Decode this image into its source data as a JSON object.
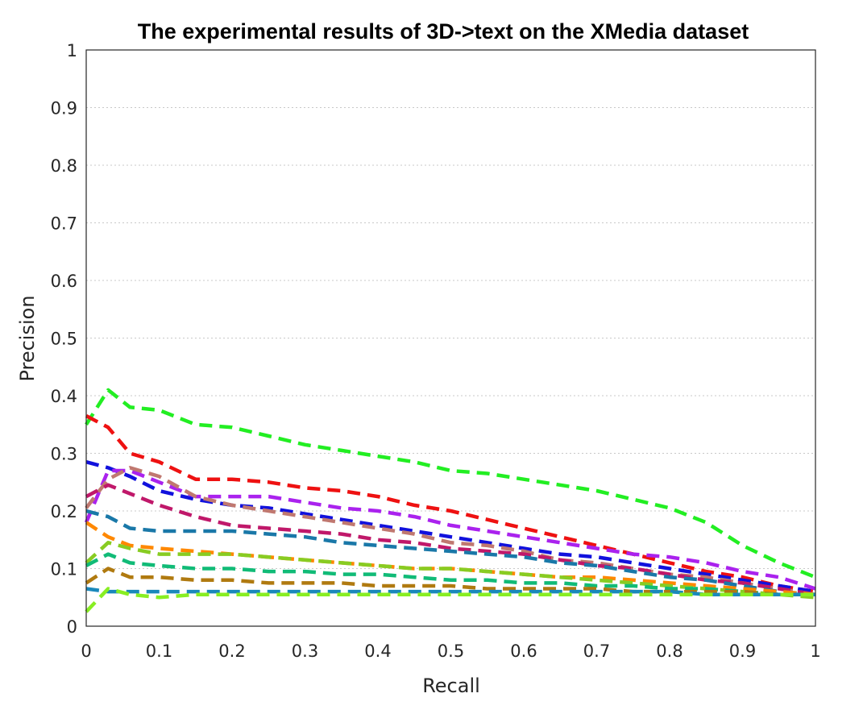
{
  "chart_data": {
    "type": "line",
    "title": "The experimental results of 3D->text on the XMedia dataset",
    "xlabel": "Recall",
    "ylabel": "Precision",
    "xlim": [
      0,
      1
    ],
    "ylim": [
      0,
      1
    ],
    "xticks": [
      "0",
      "0.1",
      "0.2",
      "0.3",
      "0.4",
      "0.5",
      "0.6",
      "0.7",
      "0.8",
      "0.9",
      "1"
    ],
    "yticks": [
      "0",
      "0.1",
      "0.2",
      "0.3",
      "0.4",
      "0.5",
      "0.6",
      "0.7",
      "0.8",
      "0.9",
      "1"
    ],
    "grid": "horizontal-dotted",
    "legend": "none",
    "x": [
      0,
      0.03,
      0.06,
      0.1,
      0.15,
      0.2,
      0.25,
      0.3,
      0.35,
      0.4,
      0.45,
      0.5,
      0.55,
      0.6,
      0.65,
      0.7,
      0.75,
      0.8,
      0.85,
      0.9,
      0.95,
      1.0
    ],
    "series": [
      {
        "color": "#22ee22",
        "values": [
          0.35,
          0.41,
          0.38,
          0.375,
          0.35,
          0.345,
          0.33,
          0.315,
          0.305,
          0.295,
          0.285,
          0.27,
          0.265,
          0.255,
          0.245,
          0.235,
          0.22,
          0.205,
          0.18,
          0.14,
          0.11,
          0.085
        ]
      },
      {
        "color": "#ee1111",
        "values": [
          0.365,
          0.345,
          0.3,
          0.285,
          0.255,
          0.255,
          0.25,
          0.24,
          0.235,
          0.225,
          0.21,
          0.2,
          0.185,
          0.17,
          0.155,
          0.14,
          0.125,
          0.11,
          0.095,
          0.085,
          0.07,
          0.06
        ]
      },
      {
        "color": "#1111dd",
        "values": [
          0.285,
          0.275,
          0.26,
          0.235,
          0.22,
          0.21,
          0.205,
          0.195,
          0.185,
          0.175,
          0.165,
          0.155,
          0.145,
          0.135,
          0.125,
          0.12,
          0.11,
          0.1,
          0.09,
          0.08,
          0.07,
          0.06
        ]
      },
      {
        "color": "#aa22ee",
        "values": [
          0.18,
          0.27,
          0.27,
          0.25,
          0.225,
          0.225,
          0.225,
          0.215,
          0.205,
          0.2,
          0.19,
          0.175,
          0.165,
          0.155,
          0.145,
          0.135,
          0.125,
          0.12,
          0.11,
          0.095,
          0.085,
          0.065
        ]
      },
      {
        "color": "#c07870",
        "values": [
          0.205,
          0.255,
          0.275,
          0.26,
          0.225,
          0.21,
          0.2,
          0.19,
          0.18,
          0.17,
          0.16,
          0.145,
          0.14,
          0.13,
          0.115,
          0.11,
          0.1,
          0.09,
          0.085,
          0.075,
          0.065,
          0.055
        ]
      },
      {
        "color": "#c0186a",
        "values": [
          0.225,
          0.245,
          0.23,
          0.21,
          0.19,
          0.175,
          0.17,
          0.165,
          0.16,
          0.15,
          0.145,
          0.135,
          0.13,
          0.125,
          0.115,
          0.105,
          0.1,
          0.09,
          0.08,
          0.075,
          0.065,
          0.055
        ]
      },
      {
        "color": "#1a78a8",
        "values": [
          0.2,
          0.19,
          0.17,
          0.165,
          0.165,
          0.165,
          0.16,
          0.155,
          0.145,
          0.14,
          0.135,
          0.13,
          0.125,
          0.12,
          0.11,
          0.105,
          0.095,
          0.085,
          0.08,
          0.07,
          0.06,
          0.055
        ]
      },
      {
        "color": "#ff8800",
        "values": [
          0.18,
          0.155,
          0.14,
          0.135,
          0.13,
          0.125,
          0.12,
          0.115,
          0.11,
          0.105,
          0.1,
          0.1,
          0.095,
          0.09,
          0.085,
          0.085,
          0.08,
          0.075,
          0.07,
          0.065,
          0.06,
          0.055
        ]
      },
      {
        "color": "#88cc22",
        "values": [
          0.11,
          0.145,
          0.135,
          0.125,
          0.125,
          0.125,
          0.12,
          0.115,
          0.11,
          0.105,
          0.1,
          0.1,
          0.095,
          0.09,
          0.085,
          0.08,
          0.075,
          0.07,
          0.065,
          0.06,
          0.055,
          0.05
        ]
      },
      {
        "color": "#11bb77",
        "values": [
          0.105,
          0.125,
          0.11,
          0.105,
          0.1,
          0.1,
          0.095,
          0.095,
          0.09,
          0.09,
          0.085,
          0.08,
          0.08,
          0.075,
          0.075,
          0.07,
          0.07,
          0.065,
          0.065,
          0.06,
          0.055,
          0.055
        ]
      },
      {
        "color": "#b07a10",
        "values": [
          0.075,
          0.1,
          0.085,
          0.085,
          0.08,
          0.08,
          0.075,
          0.075,
          0.075,
          0.07,
          0.07,
          0.07,
          0.065,
          0.065,
          0.065,
          0.065,
          0.06,
          0.06,
          0.06,
          0.06,
          0.055,
          0.055
        ]
      },
      {
        "color": "#1a88bb",
        "values": [
          0.065,
          0.06,
          0.06,
          0.06,
          0.06,
          0.06,
          0.06,
          0.06,
          0.06,
          0.06,
          0.06,
          0.06,
          0.06,
          0.06,
          0.06,
          0.06,
          0.06,
          0.06,
          0.055,
          0.055,
          0.055,
          0.055
        ]
      },
      {
        "color": "#88ee22",
        "values": [
          0.025,
          0.065,
          0.055,
          0.05,
          0.055,
          0.055,
          0.055,
          0.055,
          0.055,
          0.055,
          0.055,
          0.055,
          0.055,
          0.055,
          0.055,
          0.055,
          0.055,
          0.055,
          0.055,
          0.055,
          0.055,
          0.055
        ]
      }
    ]
  }
}
